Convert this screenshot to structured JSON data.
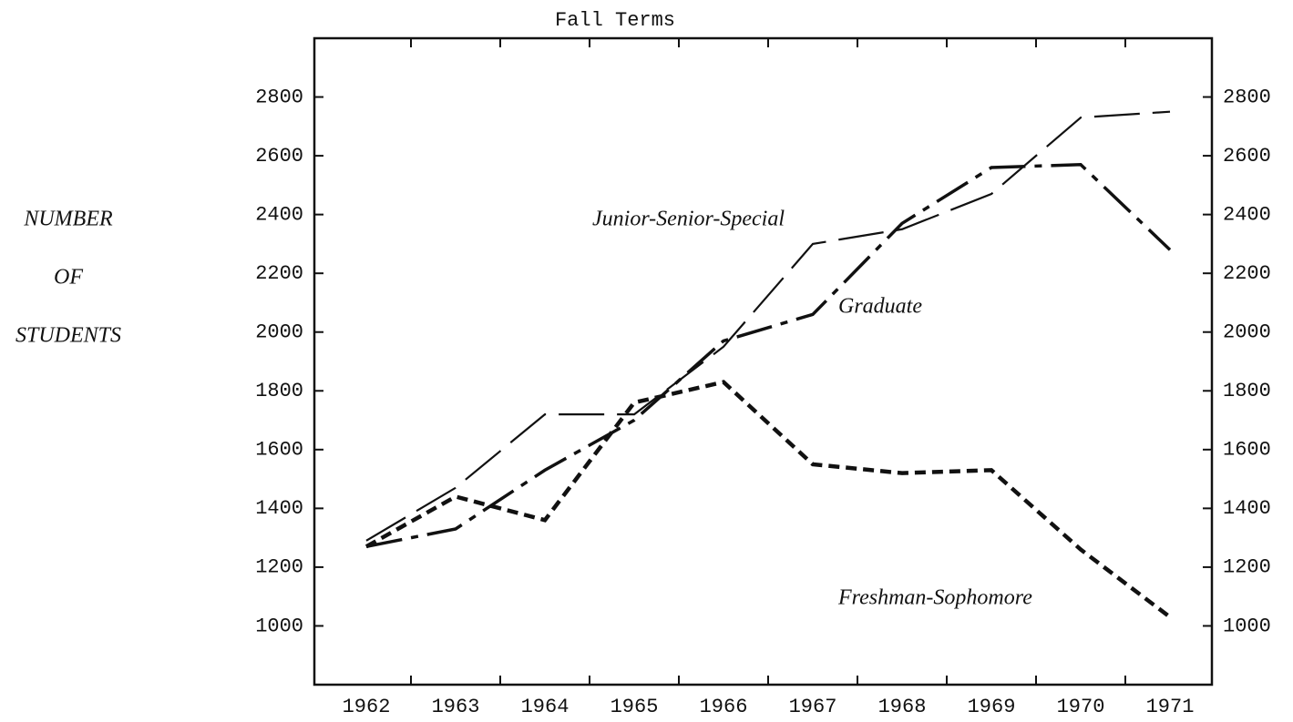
{
  "chart_data": {
    "type": "line",
    "title": "Fall Terms",
    "ylabel_lines": [
      "NUMBER",
      "OF",
      "STUDENTS"
    ],
    "categories": [
      "1962",
      "1963",
      "1964",
      "1965",
      "1966",
      "1967",
      "1968",
      "1969",
      "1970",
      "1971"
    ],
    "ylim": [
      800,
      3000
    ],
    "yticks": [
      1000,
      1200,
      1400,
      1600,
      1800,
      2000,
      2200,
      2400,
      2600,
      2800
    ],
    "series": [
      {
        "name": "Junior-Senior-Special",
        "color": "#111111",
        "dash": "long",
        "values": [
          1290,
          1470,
          1720,
          1720,
          1950,
          2300,
          2350,
          2470,
          2730,
          2750
        ]
      },
      {
        "name": "Graduate",
        "color": "#111111",
        "dash": "dashdot",
        "values": [
          1270,
          1330,
          1530,
          1700,
          1970,
          2060,
          2370,
          2560,
          2570,
          2280
        ]
      },
      {
        "name": "Freshman-Sophomore",
        "color": "#111111",
        "dash": "short",
        "values": [
          1270,
          1440,
          1360,
          1760,
          1830,
          1550,
          1520,
          1530,
          1260,
          1030
        ]
      }
    ]
  }
}
